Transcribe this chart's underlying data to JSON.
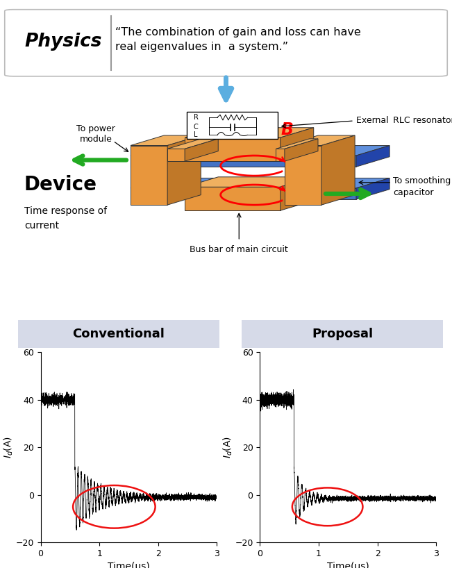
{
  "physics_text": "Physics",
  "quote_text": "“The combination of gain and loss can have\nreal eigenvalues in  a system.”",
  "device_title": "Device",
  "device_subtitle": "Time response of\ncurrent",
  "label_power": "To power\nmodule",
  "label_rlc": "Exernal  RLC resonator",
  "label_bus": "Bus bar of main circuit",
  "label_smooth": "To smoothing\ncapacitor",
  "label_B": "B",
  "conv_title": "Conventional",
  "prop_title": "Proposal",
  "xlabel": "Time(μs)",
  "ylabel": "$I_d$(A)",
  "ylim": [
    -20,
    60
  ],
  "yticks": [
    -20,
    0,
    20,
    40,
    60
  ],
  "xlim": [
    0,
    3
  ],
  "xticks": [
    0,
    1,
    2,
    3
  ],
  "bg_color": "#ffffff",
  "arrow_color": "#5baee0",
  "label_box_bg": "#d6dae8",
  "orange_face": "#e8963c",
  "orange_top": "#f0b060",
  "orange_right": "#c07828",
  "blue_face": "#4472c4",
  "blue_top": "#6090dd",
  "blue_right": "#2244aa",
  "red_color": "#ee1111",
  "green_color": "#22aa22"
}
